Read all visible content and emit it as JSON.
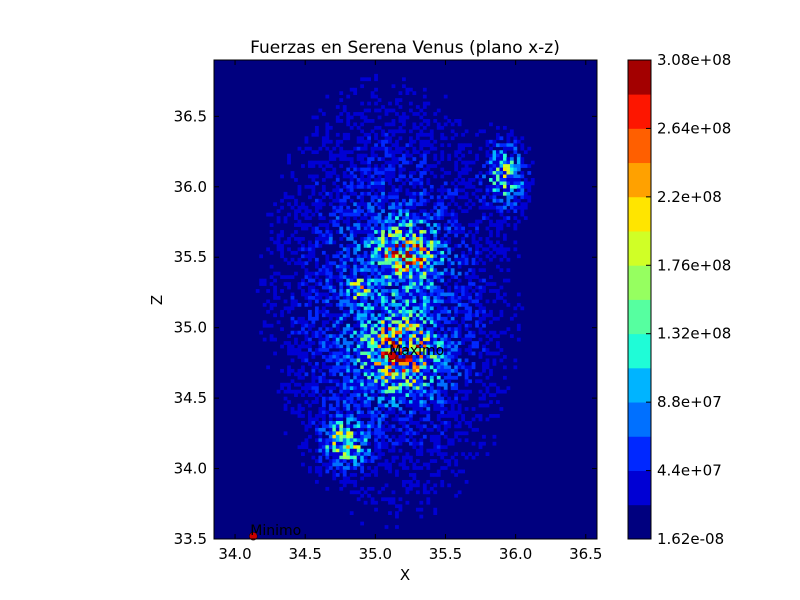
{
  "chart_data": {
    "type": "heatmap",
    "title": "Fuerzas en Serena Venus (plano x-z)",
    "xlabel": "X",
    "ylabel": "Z",
    "xlim": [
      33.85,
      36.58
    ],
    "ylim": [
      33.5,
      36.9
    ],
    "xticks": [
      "34.0",
      "34.5",
      "35.0",
      "35.5",
      "36.0",
      "36.5"
    ],
    "xtick_values": [
      34.0,
      34.5,
      35.0,
      35.5,
      36.0,
      36.5
    ],
    "yticks": [
      "33.5",
      "34.0",
      "34.5",
      "35.0",
      "35.5",
      "36.0",
      "36.5"
    ],
    "ytick_values": [
      33.5,
      34.0,
      34.5,
      35.0,
      35.5,
      36.0,
      36.5
    ],
    "colorbar": {
      "min": 1.62e-08,
      "max": 308000000.0,
      "levels": 14,
      "tick_labels": [
        "1.62e-08",
        "4.4e+07",
        "8.8e+07",
        "1.32e+08",
        "1.76e+08",
        "2.2e+08",
        "2.64e+08",
        "3.08e+08"
      ],
      "colors": [
        "#00007f",
        "#0000d4",
        "#0028ff",
        "#0070ff",
        "#00b4ff",
        "#1ffcd7",
        "#56ffa0",
        "#96ff60",
        "#d0ff26",
        "#ffe500",
        "#ffa100",
        "#ff5f00",
        "#fd1600",
        "#a30000"
      ]
    },
    "clusters": [
      {
        "x": 35.22,
        "z": 35.52,
        "spread_x": 0.13,
        "spread_z": 0.13,
        "peak": 240000000.0
      },
      {
        "x": 35.18,
        "z": 34.82,
        "spread_x": 0.18,
        "spread_z": 0.18,
        "peak": 200000000.0
      },
      {
        "x": 34.78,
        "z": 34.18,
        "spread_x": 0.1,
        "spread_z": 0.1,
        "peak": 170000000.0
      },
      {
        "x": 35.93,
        "z": 36.08,
        "spread_x": 0.09,
        "spread_z": 0.15,
        "peak": 140000000.0
      },
      {
        "x": 34.88,
        "z": 35.27,
        "spread_x": 0.05,
        "spread_z": 0.05,
        "peak": 150000000.0
      },
      {
        "x": 35.1,
        "z": 35.2,
        "spread_x": 0.55,
        "spread_z": 0.95,
        "peak": 70000000.0
      }
    ],
    "annotations": [
      {
        "label": "Maximo",
        "x": 35.12,
        "z": 34.8,
        "color": "#cc0000"
      },
      {
        "label": "Minimo",
        "x": 34.13,
        "z": 33.52,
        "color": "#cc0000"
      }
    ]
  }
}
